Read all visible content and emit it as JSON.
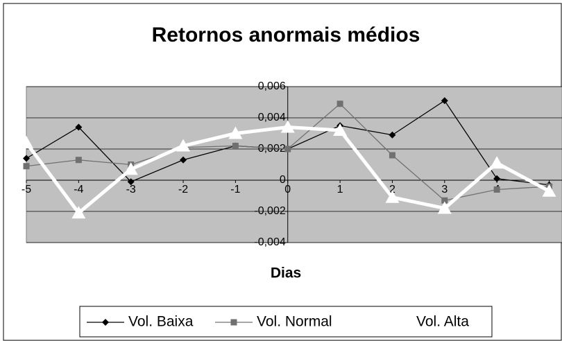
{
  "chart_data": {
    "type": "line",
    "title": "Retornos anormais médios",
    "x_label": "Dias",
    "x": [
      -5,
      -4,
      -3,
      -2,
      -1,
      0,
      1,
      2,
      3,
      4,
      5
    ],
    "xlim": [
      -5,
      5
    ],
    "xticks": [
      -5,
      -4,
      -3,
      -2,
      -1,
      0,
      1,
      2,
      3,
      4,
      5
    ],
    "ylim": [
      -0.004,
      0.006
    ],
    "yticks": [
      {
        "value": -0.004,
        "label": "-0,004"
      },
      {
        "value": -0.002,
        "label": "-0,002"
      },
      0,
      {
        "value": 0.002,
        "label": "0,002"
      },
      {
        "value": 0.004,
        "label": "0,004"
      },
      {
        "value": 0.006,
        "label": "0,006"
      }
    ],
    "grid": true,
    "legend": "bottom",
    "series": [
      {
        "name": "Vol. Baixa",
        "color": "#000000",
        "marker": "diamond",
        "values": [
          0.0014,
          0.0034,
          -0.0001,
          0.0013,
          0.0022,
          0.002,
          0.0035,
          0.0029,
          0.0051,
          0.0001,
          -0.0003
        ]
      },
      {
        "name": "Vol. Normal",
        "color": "#707070",
        "marker": "square",
        "values": [
          0.0009,
          0.0013,
          0.001,
          0.0021,
          0.0022,
          0.002,
          0.0049,
          0.0016,
          -0.0013,
          -0.0006,
          -0.0004
        ]
      },
      {
        "name": "Vol. Alta",
        "color": "#ffffff",
        "marker": "triangle",
        "values": [
          0.0024,
          -0.0021,
          0.0007,
          0.0022,
          0.003,
          0.0034,
          0.0032,
          -0.0011,
          -0.0018,
          0.0011,
          -0.0007
        ]
      }
    ]
  }
}
